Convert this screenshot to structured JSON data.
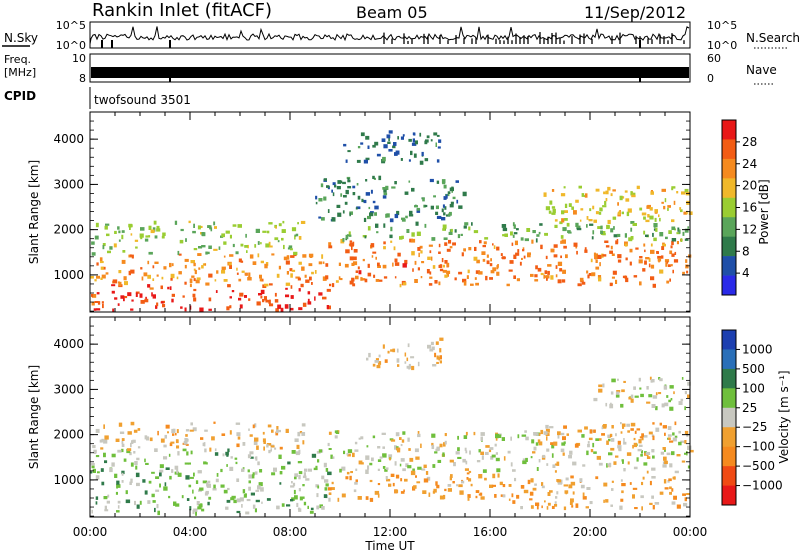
{
  "header": {
    "station": "Rankin Inlet (fitACF)",
    "beam": "Beam 05",
    "date": "11/Sep/2012"
  },
  "strip_panels": {
    "nsky": {
      "label": "N.Sky",
      "ticks": [
        "10^5",
        "10^0"
      ]
    },
    "nsearch": {
      "label": "N.Search",
      "ticks": [
        "10^5",
        "10^0"
      ]
    },
    "freq": {
      "label_lines": [
        "Freq.",
        "[MHz]"
      ],
      "ticks": [
        "10",
        "8"
      ]
    },
    "nave": {
      "label": "Nave",
      "ticks": [
        "60",
        "0"
      ]
    },
    "cpid": {
      "label": "CPID",
      "value": "twofsound 3501"
    }
  },
  "colors": {
    "power": [
      "#2a2ae8",
      "#1f4fa8",
      "#2f7a4a",
      "#5aa55a",
      "#9acd32",
      "#f0b82a",
      "#f58a1f",
      "#f25c14",
      "#e81818"
    ],
    "velocity": [
      "#1c3fb0",
      "#2a6fb8",
      "#2f7a4a",
      "#6fbf3c",
      "#c8c8c0",
      "#f0a030",
      "#f58a1f",
      "#f04a14",
      "#e81818"
    ]
  },
  "chart_data": [
    {
      "type": "heatmap",
      "name": "power",
      "xlabel": "",
      "ylabel": "Slant Range [km]",
      "xlim": [
        "00:00",
        "24:00"
      ],
      "ylim": [
        180,
        4600
      ],
      "yticks": [
        "1000",
        "2000",
        "3000",
        "4000"
      ],
      "colorbar": {
        "label": "Power [dB]",
        "ticks": [
          "4",
          "8",
          "12",
          "16",
          "20",
          "24",
          "28"
        ],
        "range": [
          0,
          30
        ]
      },
      "bands": [
        {
          "t0": 0.0,
          "t1": 9.5,
          "r0": 250,
          "r1": 800,
          "value": 28
        },
        {
          "t0": 0.0,
          "t1": 9.5,
          "r0": 800,
          "r1": 1500,
          "value": 22
        },
        {
          "t0": 0.0,
          "t1": 8.5,
          "r0": 1500,
          "r1": 2200,
          "value": 14
        },
        {
          "t0": 9.5,
          "t1": 24.0,
          "r0": 800,
          "r1": 1800,
          "value": 24
        },
        {
          "t0": 10.0,
          "t1": 24.0,
          "r0": 1800,
          "r1": 2200,
          "value": 12
        },
        {
          "t0": 9.0,
          "t1": 15.0,
          "r0": 2200,
          "r1": 3200,
          "value": 8
        },
        {
          "t0": 10.0,
          "t1": 14.0,
          "r0": 3500,
          "r1": 4200,
          "value": 6
        },
        {
          "t0": 18.0,
          "t1": 24.0,
          "r0": 2200,
          "r1": 3000,
          "value": 18
        }
      ]
    },
    {
      "type": "heatmap",
      "name": "velocity",
      "xlabel": "Time UT",
      "ylabel": "Slant Range [km]",
      "xlim": [
        "00:00",
        "24:00"
      ],
      "ylim": [
        180,
        4600
      ],
      "xticks": [
        "00:00",
        "04:00",
        "08:00",
        "12:00",
        "16:00",
        "20:00",
        "00:00"
      ],
      "yticks": [
        "1000",
        "2000",
        "3000",
        "4000"
      ],
      "colorbar": {
        "label": "Velocity [m s⁻¹]",
        "ticks": [
          "1000",
          "500",
          "100",
          "25",
          "−25",
          "−100",
          "−500",
          "−1000"
        ],
        "range": [
          -1200,
          1200
        ]
      },
      "bands": [
        {
          "t0": 0.0,
          "t1": 9.5,
          "r0": 300,
          "r1": 1700,
          "value": 200
        },
        {
          "t0": 0.0,
          "t1": 8.5,
          "r0": 1700,
          "r1": 2300,
          "value": -200
        },
        {
          "t0": 9.5,
          "t1": 24.0,
          "r0": 1200,
          "r1": 2100,
          "value": 0
        },
        {
          "t0": 9.5,
          "t1": 16.5,
          "r0": 600,
          "r1": 1200,
          "value": -400
        },
        {
          "t0": 16.5,
          "t1": 24.0,
          "r0": 400,
          "r1": 1100,
          "value": -300
        },
        {
          "t0": 18.0,
          "t1": 24.0,
          "r0": 1800,
          "r1": 2300,
          "value": -300
        },
        {
          "t0": 11.0,
          "t1": 14.0,
          "r0": 3500,
          "r1": 4200,
          "value": -200
        },
        {
          "t0": 20.0,
          "t1": 24.0,
          "r0": 2600,
          "r1": 3300,
          "value": 0
        }
      ]
    }
  ]
}
